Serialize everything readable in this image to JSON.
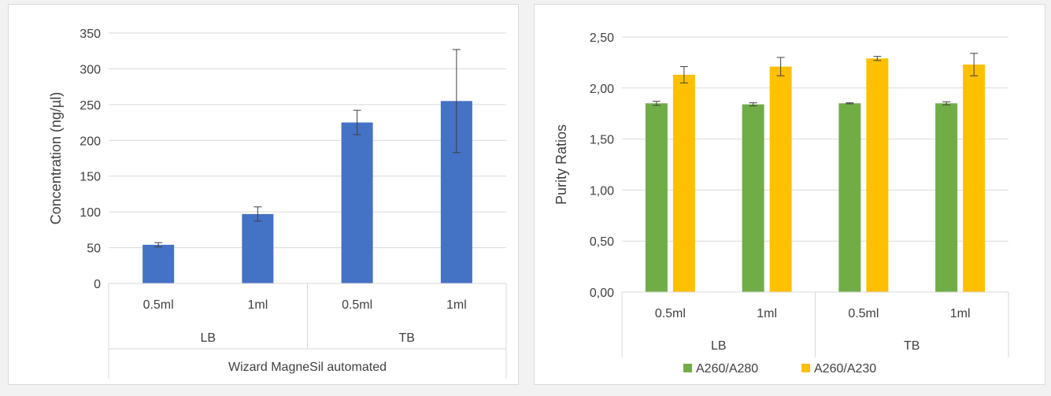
{
  "chart_data": [
    {
      "type": "bar",
      "title": "",
      "xlabel": "",
      "ylabel": "Concentration (ng/µl)",
      "ylim": [
        0,
        350
      ],
      "yticks": [
        "0",
        "50",
        "100",
        "150",
        "200",
        "250",
        "300",
        "350"
      ],
      "grid": true,
      "categories": [
        "0.5ml",
        "1ml",
        "0.5ml",
        "1ml"
      ],
      "groups": [
        {
          "label": "LB",
          "span": 2
        },
        {
          "label": "TB",
          "span": 2
        }
      ],
      "outer_group": "Wizard MagneSil automated",
      "series": [
        {
          "values": [
            54,
            97,
            225,
            255
          ],
          "error": [
            3,
            10,
            17,
            72
          ],
          "color": "#4472c4"
        }
      ],
      "legend": "none"
    },
    {
      "type": "bar",
      "title": "",
      "xlabel": "",
      "ylabel": "Purity Ratios",
      "ylim": [
        0,
        2.5
      ],
      "yticks": [
        "0,00",
        "0,50",
        "1,00",
        "1,50",
        "2,00",
        "2,50"
      ],
      "grid": true,
      "categories": [
        "0.5ml",
        "1ml",
        "0.5ml",
        "1ml"
      ],
      "groups": [
        {
          "label": "LB",
          "span": 2
        },
        {
          "label": "TB",
          "span": 2
        }
      ],
      "series": [
        {
          "name": "A260/A280",
          "values": [
            1.85,
            1.84,
            1.85,
            1.85
          ],
          "error": [
            0.02,
            0.015,
            0.005,
            0.015
          ],
          "color": "#70ad47"
        },
        {
          "name": "A260/A230",
          "values": [
            2.13,
            2.21,
            2.29,
            2.23
          ],
          "error": [
            0.08,
            0.09,
            0.02,
            0.11
          ],
          "color": "#ffc000"
        }
      ],
      "legend": "bottom"
    }
  ]
}
